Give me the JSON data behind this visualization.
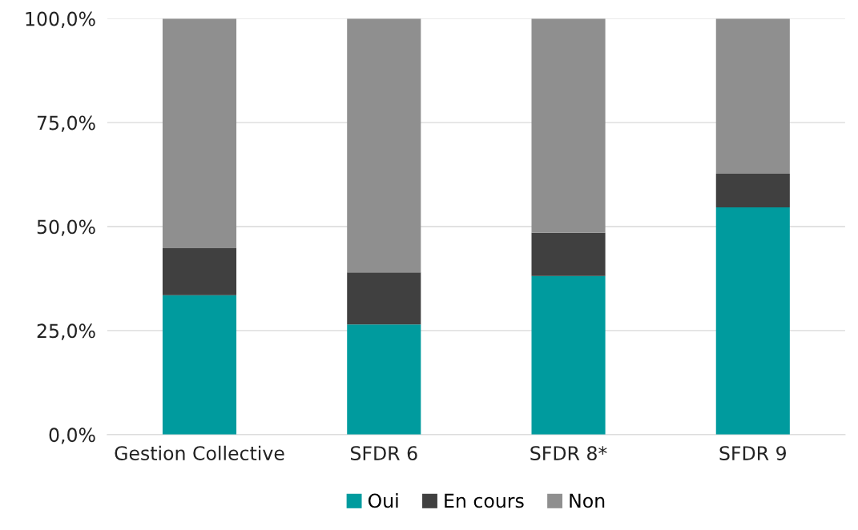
{
  "chart_data": {
    "type": "bar",
    "stacked": true,
    "categories": [
      "Gestion Collective",
      "SFDR 6",
      "SFDR 8*",
      "SFDR 9"
    ],
    "series": [
      {
        "name": "Oui",
        "color": "#009b9e",
        "values": [
          33.5,
          26.5,
          38.1,
          54.6
        ]
      },
      {
        "name": "En cours",
        "color": "#404040",
        "values": [
          11.3,
          12.5,
          10.4,
          8.1
        ]
      },
      {
        "name": "Non",
        "color": "#8f8f8f",
        "values": [
          55.2,
          61.0,
          51.5,
          37.3
        ]
      }
    ],
    "ylim": [
      0,
      100
    ],
    "yticks": [
      {
        "value": 0,
        "label": "0,0%"
      },
      {
        "value": 25,
        "label": "25,0%"
      },
      {
        "value": 50,
        "label": "50,0%"
      },
      {
        "value": 75,
        "label": "75,0%"
      },
      {
        "value": 100,
        "label": "100,0%"
      }
    ],
    "grid": "y",
    "legend": "bottom"
  }
}
